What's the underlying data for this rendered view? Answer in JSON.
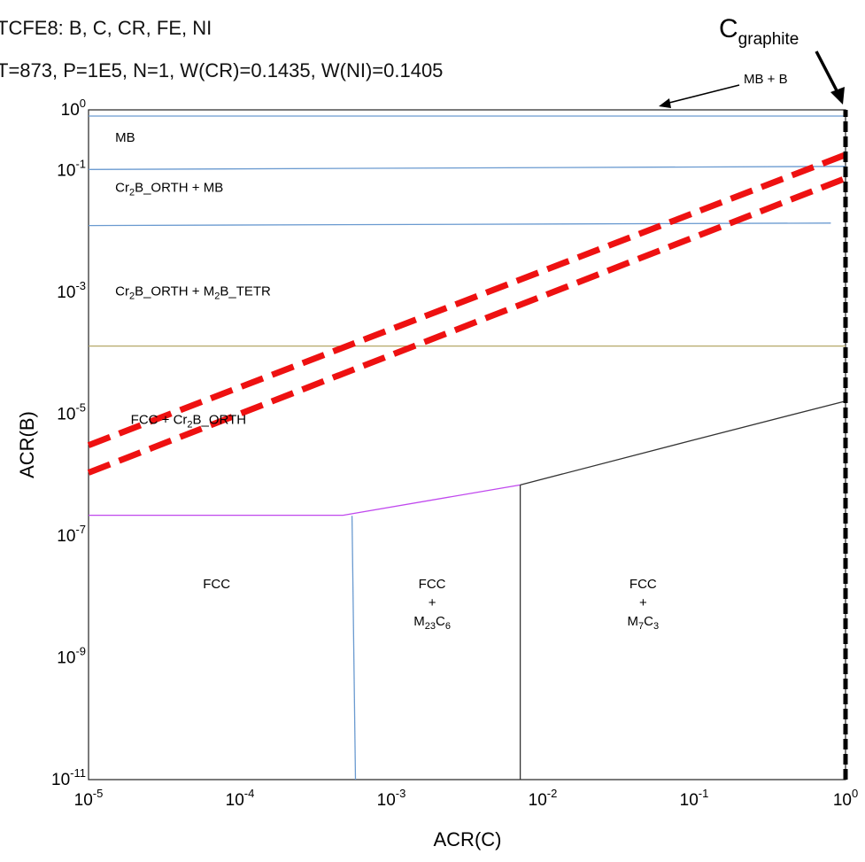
{
  "header": {
    "line1": "TCFE8: B, C, CR, FE, NI",
    "line2": "T=873, P=1E5, N=1, W(CR)=0.1435, W(NI)=0.1405"
  },
  "chart_data": {
    "type": "line",
    "xlabel": "ACR(C)",
    "ylabel": "ACR(B)",
    "xscale": "log",
    "yscale": "log",
    "xlim": [
      1e-05,
      1
    ],
    "ylim": [
      1e-11,
      1
    ],
    "x_ticks": [
      {
        "base": "10",
        "exp": "-5",
        "value": 1e-05
      },
      {
        "base": "10",
        "exp": "-4",
        "value": 0.0001
      },
      {
        "base": "10",
        "exp": "-3",
        "value": 0.001
      },
      {
        "base": "10",
        "exp": "-2",
        "value": 0.01
      },
      {
        "base": "10",
        "exp": "-1",
        "value": 0.1
      },
      {
        "base": "10",
        "exp": "0",
        "value": 1
      }
    ],
    "y_ticks": [
      {
        "base": "10",
        "exp": "0",
        "value": 1
      },
      {
        "base": "10",
        "exp": "-1",
        "value": 0.1
      },
      {
        "base": "10",
        "exp": "-3",
        "value": 0.001
      },
      {
        "base": "10",
        "exp": "-5",
        "value": 1e-05
      },
      {
        "base": "10",
        "exp": "-7",
        "value": 1e-07
      },
      {
        "base": "10",
        "exp": "-9",
        "value": 1e-09
      },
      {
        "base": "10",
        "exp": "-11",
        "value": 1e-11
      }
    ],
    "series": [
      {
        "color": "#6a9ad0",
        "points": [
          [
            1e-05,
            0.79
          ],
          [
            1,
            0.79
          ]
        ]
      },
      {
        "color": "#6a9ad0",
        "points": [
          [
            1e-05,
            0.105
          ],
          [
            1,
            0.118
          ]
        ]
      },
      {
        "color": "#6a9ad0",
        "points": [
          [
            1e-05,
            0.0126
          ],
          [
            0.8,
            0.0138
          ]
        ]
      },
      {
        "color": "#b5a868",
        "points": [
          [
            1e-05,
            0.000132
          ],
          [
            1,
            0.000132
          ]
        ]
      },
      {
        "color": "#c048ee",
        "points": [
          [
            1e-05,
            2.2e-07
          ],
          [
            0.00048,
            2.2e-07
          ],
          [
            0.0071,
            6.9e-07
          ]
        ]
      },
      {
        "color": "#333333",
        "points": [
          [
            0.0071,
            6.9e-07
          ],
          [
            0.1,
            3.8e-06
          ],
          [
            1,
            1.65e-05
          ]
        ]
      },
      {
        "color": "#6a9ad0",
        "points": [
          [
            0.00055,
            2.15e-07
          ],
          [
            0.00058,
            1e-11
          ]
        ]
      },
      {
        "color": "#333333",
        "points": [
          [
            0.0071,
            6.9e-07
          ],
          [
            0.0071,
            1e-11
          ]
        ]
      }
    ],
    "dashed_lines": [
      {
        "color": "#ee1111",
        "points": [
          [
            1e-05,
            3.1e-06
          ],
          [
            1,
            0.183
          ]
        ]
      },
      {
        "color": "#ee1111",
        "points": [
          [
            1e-05,
            1.1e-06
          ],
          [
            1,
            0.075
          ]
        ]
      },
      {
        "color": "#000000",
        "points": [
          [
            1,
            1e-11
          ],
          [
            1,
            1
          ]
        ]
      }
    ],
    "region_labels": [
      {
        "lines": [
          [
            {
              "t": "MB"
            }
          ]
        ],
        "x": 1.5e-05,
        "y": 0.3
      },
      {
        "lines": [
          [
            {
              "t": "Cr"
            },
            {
              "t": "2",
              "sub": true
            },
            {
              "t": "B_ORTH + MB"
            }
          ]
        ],
        "x": 1.5e-05,
        "y": 0.045
      },
      {
        "lines": [
          [
            {
              "t": "Cr"
            },
            {
              "t": "2",
              "sub": true
            },
            {
              "t": "B_ORTH + M"
            },
            {
              "t": "2",
              "sub": true
            },
            {
              "t": "B_TETR"
            }
          ]
        ],
        "x": 1.5e-05,
        "y": 0.0009
      },
      {
        "lines": [
          [
            {
              "t": "FCC + Cr"
            },
            {
              "t": "2",
              "sub": true
            },
            {
              "t": "B_ORTH"
            }
          ]
        ],
        "x": 1.9e-05,
        "y": 7e-06
      },
      {
        "lines": [
          [
            {
              "t": "FCC"
            }
          ]
        ],
        "x": 5.7e-05,
        "y": 1.4e-08
      },
      {
        "lines": [
          [
            {
              "t": "FCC"
            }
          ],
          [
            {
              "t": "+"
            }
          ],
          [
            {
              "t": "M"
            },
            {
              "t": "23",
              "sub": true
            },
            {
              "t": "C"
            },
            {
              "t": "6",
              "sub": true
            }
          ]
        ],
        "x": 0.00186,
        "y": 1.4e-08
      },
      {
        "lines": [
          [
            {
              "t": "FCC"
            }
          ],
          [
            {
              "t": "+"
            }
          ],
          [
            {
              "t": "M"
            },
            {
              "t": "7",
              "sub": true
            },
            {
              "t": "C"
            },
            {
              "t": "3",
              "sub": true
            }
          ]
        ],
        "x": 0.046,
        "y": 1.4e-08
      }
    ],
    "annotations": {
      "mb_b": "MB + B",
      "c_graphite_main": "C",
      "c_graphite_sub": "graphite"
    }
  }
}
